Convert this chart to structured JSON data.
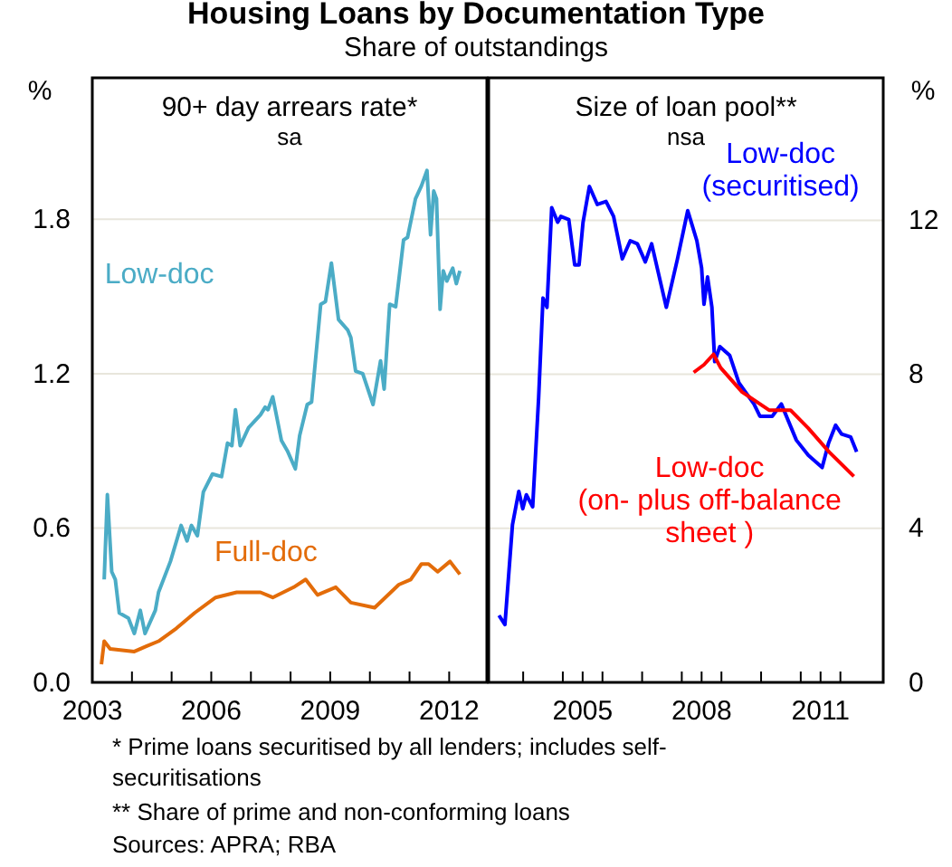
{
  "chart_data": [
    {
      "type": "line",
      "title": "90+ day arrears rate*",
      "subtitle": "sa",
      "ylabel": "%",
      "xlim": [
        2003,
        2012.95
      ],
      "xticks": [
        2003,
        {
          "value": 2004,
          "label": null
        },
        {
          "value": 2005,
          "label": null
        },
        2006,
        {
          "value": 2007,
          "label": null
        },
        {
          "value": 2008,
          "label": null
        },
        2009,
        {
          "value": 2010,
          "label": null
        },
        {
          "value": 2011,
          "label": null
        },
        2012
      ],
      "ylim": [
        0,
        2.35
      ],
      "yticks": [
        {
          "value": 0,
          "label": "0.0"
        },
        0.6,
        1.2,
        1.8
      ],
      "grid": "y",
      "series": [
        {
          "name": "Low-doc",
          "color": "#4bacc6",
          "x": [
            2003.3,
            2003.38,
            2003.49,
            2003.58,
            2003.68,
            2003.91,
            2004.06,
            2004.21,
            2004.33,
            2004.59,
            2004.67,
            2004.97,
            2005.24,
            2005.39,
            2005.5,
            2005.65,
            2005.8,
            2006.03,
            2006.26,
            2006.41,
            2006.52,
            2006.61,
            2006.73,
            2006.94,
            2007.24,
            2007.36,
            2007.43,
            2007.55,
            2007.77,
            2007.92,
            2008.12,
            2008.23,
            2008.42,
            2008.53,
            2008.76,
            2008.88,
            2009.03,
            2009.21,
            2009.44,
            2009.52,
            2009.64,
            2009.82,
            2010.08,
            2010.27,
            2010.36,
            2010.5,
            2010.65,
            2010.85,
            2010.95,
            2011.15,
            2011.3,
            2011.44,
            2011.53,
            2011.61,
            2011.68,
            2011.77,
            2011.85,
            2011.94,
            2012.09,
            2012.18,
            2012.27
          ],
          "values": [
            0.4,
            0.73,
            0.43,
            0.4,
            0.27,
            0.25,
            0.19,
            0.28,
            0.19,
            0.28,
            0.35,
            0.47,
            0.61,
            0.55,
            0.61,
            0.57,
            0.74,
            0.81,
            0.8,
            0.93,
            0.92,
            1.06,
            0.92,
            0.99,
            1.04,
            1.07,
            1.06,
            1.11,
            0.94,
            0.9,
            0.83,
            0.96,
            1.08,
            1.09,
            1.47,
            1.48,
            1.63,
            1.41,
            1.37,
            1.34,
            1.21,
            1.2,
            1.08,
            1.25,
            1.14,
            1.47,
            1.46,
            1.72,
            1.73,
            1.88,
            1.93,
            1.99,
            1.74,
            1.91,
            1.88,
            1.45,
            1.6,
            1.56,
            1.61,
            1.55,
            1.6
          ]
        },
        {
          "name": "Full-doc",
          "color": "#e36c09",
          "x": [
            2003.23,
            2003.3,
            2003.45,
            2004.06,
            2004.36,
            2004.67,
            2005.12,
            2005.58,
            2006.11,
            2006.64,
            2007.24,
            2007.55,
            2008.08,
            2008.38,
            2008.68,
            2009.14,
            2009.52,
            2010.12,
            2010.73,
            2011.03,
            2011.3,
            2011.48,
            2011.71,
            2012.02,
            2012.27
          ],
          "values": [
            0.07,
            0.16,
            0.13,
            0.12,
            0.14,
            0.16,
            0.21,
            0.27,
            0.33,
            0.35,
            0.35,
            0.33,
            0.37,
            0.4,
            0.34,
            0.37,
            0.31,
            0.29,
            0.38,
            0.4,
            0.46,
            0.46,
            0.43,
            0.47,
            0.42
          ]
        }
      ],
      "annotations": [
        "Housing Loans by Documentation Type",
        "Share of outstandings",
        "* Prime loans securitised by all lenders; includes self-securitisations",
        "** Share of prime and non-conforming loans",
        "Sources: APRA; RBA"
      ]
    },
    {
      "type": "line",
      "title": "Size of loan pool**",
      "subtitle": "nsa",
      "ylabel": "%",
      "xlim": [
        2002.63,
        2012.58
      ],
      "xticks": [
        {
          "value": 2003.5,
          "label": null
        },
        {
          "value": 2004.5,
          "label": null
        },
        2005,
        {
          "value": 2005.5,
          "label": null
        },
        {
          "value": 2006.5,
          "label": null
        },
        {
          "value": 2007.5,
          "label": null
        },
        2008,
        {
          "value": 2008.5,
          "label": null
        },
        {
          "value": 2009.5,
          "label": null
        },
        {
          "value": 2010.5,
          "label": null
        },
        2011,
        {
          "value": 2011.5,
          "label": null
        }
      ],
      "ylim": [
        0,
        15.7
      ],
      "yticks": [
        0,
        4,
        8,
        12
      ],
      "grid": "y",
      "series": [
        {
          "name": "Low-doc\n(securitised)",
          "color": "#0000ff",
          "x": [
            2002.89,
            2003.04,
            2003.23,
            2003.39,
            2003.49,
            2003.58,
            2003.74,
            2003.89,
            2004.0,
            2004.1,
            2004.22,
            2004.37,
            2004.45,
            2004.65,
            2004.8,
            2004.91,
            2005.01,
            2005.17,
            2005.37,
            2005.59,
            2005.78,
            2006.0,
            2006.2,
            2006.38,
            2006.58,
            2006.74,
            2007.11,
            2007.39,
            2007.65,
            2007.88,
            2008.0,
            2008.06,
            2008.15,
            2008.26,
            2008.33,
            2008.46,
            2008.71,
            2008.94,
            2009.32,
            2009.47,
            2009.78,
            2010.01,
            2010.39,
            2010.69,
            2011.04,
            2011.2,
            2011.38,
            2011.53,
            2011.76,
            2011.91
          ],
          "values": [
            1.74,
            1.5,
            4.09,
            4.96,
            4.51,
            4.87,
            4.56,
            7.39,
            9.98,
            9.74,
            12.33,
            11.95,
            12.1,
            12.02,
            10.84,
            10.84,
            11.95,
            12.88,
            12.41,
            12.49,
            12.1,
            11.0,
            11.47,
            11.39,
            10.92,
            11.39,
            9.74,
            10.99,
            12.25,
            11.47,
            10.76,
            9.82,
            10.53,
            9.74,
            8.33,
            8.72,
            8.49,
            7.78,
            7.23,
            6.91,
            6.91,
            7.23,
            6.29,
            5.9,
            5.58,
            6.21,
            6.68,
            6.45,
            6.37,
            5.99
          ]
        },
        {
          "name": "Low-doc\n(on- plus off-balance\nsheet )",
          "color": "#ff0000",
          "x": [
            2007.8,
            2008.06,
            2008.3,
            2008.48,
            2009.02,
            2009.7,
            2010.24,
            2010.69,
            2011.22,
            2011.84
          ],
          "values": [
            8.05,
            8.25,
            8.52,
            8.17,
            7.54,
            7.07,
            7.07,
            6.6,
            5.98,
            5.35
          ]
        }
      ]
    }
  ]
}
